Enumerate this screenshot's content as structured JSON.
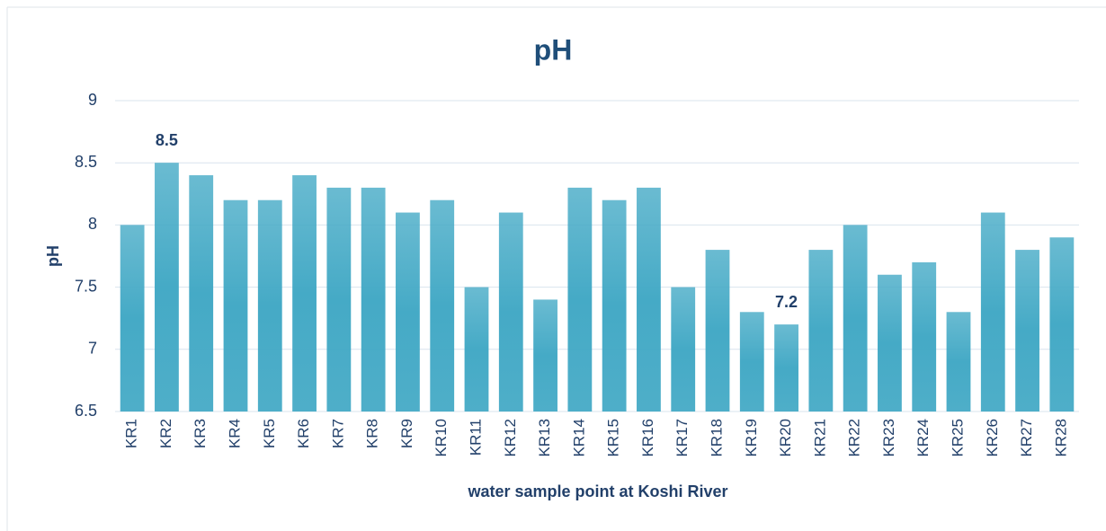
{
  "chart_data": {
    "type": "bar",
    "title": "pH",
    "y_label": "pH",
    "x_label": "water sample point at Koshi River",
    "categories": [
      "KR1",
      "KR2",
      "KR3",
      "KR4",
      "KR5",
      "KR6",
      "KR7",
      "KR8",
      "KR9",
      "KR10",
      "KR11",
      "KR12",
      "KR13",
      "KR14",
      "KR15",
      "KR16",
      "KR17",
      "KR18",
      "KR19",
      "KR20",
      "KR21",
      "KR22",
      "KR23",
      "KR24",
      "KR25",
      "KR26",
      "KR27",
      "KR28"
    ],
    "values": [
      8.0,
      8.5,
      8.4,
      8.2,
      8.2,
      8.4,
      8.3,
      8.3,
      8.1,
      8.2,
      7.5,
      8.1,
      7.4,
      8.3,
      8.2,
      8.3,
      7.5,
      7.8,
      7.3,
      7.2,
      7.8,
      8.0,
      7.6,
      7.7,
      7.3,
      8.1,
      7.8,
      7.9
    ],
    "value_labels": [
      null,
      "8.5",
      null,
      null,
      null,
      null,
      null,
      null,
      null,
      null,
      null,
      null,
      null,
      null,
      null,
      null,
      null,
      null,
      null,
      "7.2",
      null,
      null,
      null,
      null,
      null,
      null,
      null,
      null
    ],
    "color": "#45aac6",
    "ylim": [
      6.5,
      9
    ],
    "yticks": [
      6.5,
      7,
      7.5,
      8,
      8.5,
      9
    ],
    "grid": true
  }
}
